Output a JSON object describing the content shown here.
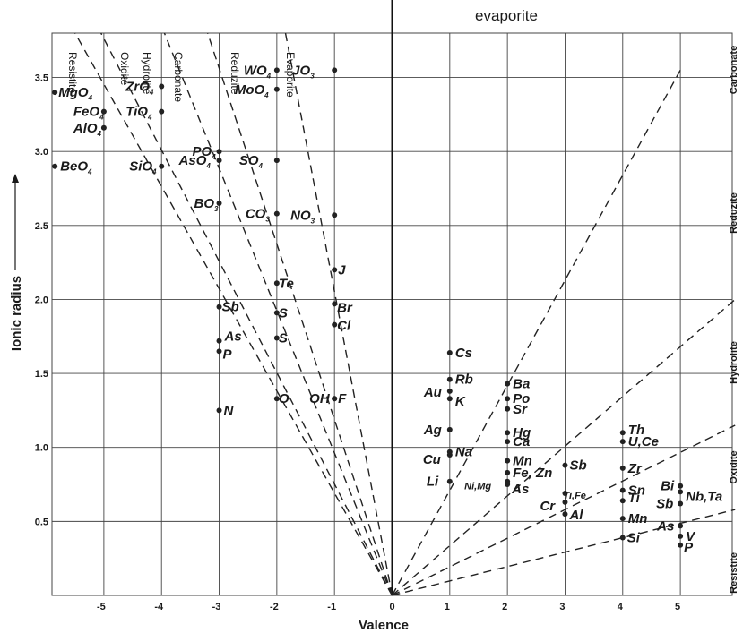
{
  "chart_data": {
    "type": "scatter",
    "title": "evaporite",
    "xlabel": "Valence",
    "ylabel": "Ionic radius",
    "xlim": [
      -5.9,
      5.9
    ],
    "ylim": [
      0,
      3.8
    ],
    "grid": true,
    "x_ticks": [
      -5,
      -4,
      -3,
      -2,
      -1,
      0,
      1,
      2,
      3,
      4,
      5
    ],
    "x_tick_labels": [
      "-5",
      "-4",
      "-3",
      "-2",
      "-1",
      "0",
      "1",
      "2",
      "3",
      "4",
      "5"
    ],
    "y_ticks": [
      0.5,
      1.0,
      1.5,
      2.0,
      2.5,
      3.0,
      3.5
    ],
    "y_tick_labels": [
      "0.5",
      "1.0",
      "1.5",
      "2.0",
      "2.5",
      "3.0",
      "3.5"
    ],
    "points": [
      {
        "label": "MgO",
        "sub": "4",
        "x": -5.85,
        "y": 3.4
      },
      {
        "label": "FeO",
        "sub": "4",
        "x": -5.0,
        "y": 3.27
      },
      {
        "label": "AlO",
        "sub": "4",
        "x": -5.0,
        "y": 3.16
      },
      {
        "label": "BeO",
        "sub": "4",
        "x": -5.85,
        "y": 2.9
      },
      {
        "label": "ZrO",
        "sub": "4",
        "x": -4.0,
        "y": 3.44
      },
      {
        "label": "TiO",
        "sub": "4",
        "x": -4.0,
        "y": 3.27
      },
      {
        "label": "SiO",
        "sub": "4",
        "x": -4.0,
        "y": 2.9
      },
      {
        "label": "PO",
        "sub": "4",
        "x": -3.0,
        "y": 3.0
      },
      {
        "label": "AsO",
        "sub": "4",
        "x": -3.0,
        "y": 2.94
      },
      {
        "label": "BO",
        "sub": "3",
        "x": -3.0,
        "y": 2.65
      },
      {
        "label": "WO",
        "sub": "4",
        "x": -2.0,
        "y": 3.55
      },
      {
        "label": "MoO",
        "sub": "4",
        "x": -2.0,
        "y": 3.42
      },
      {
        "label": "SO",
        "sub": "4",
        "x": -2.0,
        "y": 2.94
      },
      {
        "label": "CO",
        "sub": "3",
        "x": -2.0,
        "y": 2.58
      },
      {
        "label": "JO",
        "sub": "3",
        "x": -1.0,
        "y": 3.55
      },
      {
        "label": "NO",
        "sub": "3",
        "x": -1.0,
        "y": 2.57
      },
      {
        "label": "Te",
        "sub": "",
        "x": -2.0,
        "y": 2.11
      },
      {
        "label": "J",
        "sub": "",
        "x": -1.0,
        "y": 2.2
      },
      {
        "label": "Br",
        "sub": "",
        "x": -1.0,
        "y": 1.97
      },
      {
        "label": "Cl",
        "sub": "",
        "x": -1.0,
        "y": 1.83
      },
      {
        "label": "Sb",
        "sub": "",
        "x": -3.0,
        "y": 1.95
      },
      {
        "label": "S",
        "sub": "",
        "x": -2.0,
        "y": 1.91
      },
      {
        "label": "As",
        "sub": "",
        "x": -3.0,
        "y": 1.72
      },
      {
        "label": "S",
        "sub": "",
        "x": -2.0,
        "y": 1.74
      },
      {
        "label": "P",
        "sub": "",
        "x": -3.0,
        "y": 1.65
      },
      {
        "label": "O",
        "sub": "",
        "x": -2.0,
        "y": 1.33
      },
      {
        "label": "OH",
        "sub": "",
        "x": -1.0,
        "y": 1.33
      },
      {
        "label": "F",
        "sub": "",
        "x": -1.0,
        "y": 1.33
      },
      {
        "label": "N",
        "sub": "",
        "x": -3.0,
        "y": 1.25
      },
      {
        "label": "Cs",
        "sub": "",
        "x": 1.0,
        "y": 1.64
      },
      {
        "label": "Rb",
        "sub": "",
        "x": 1.0,
        "y": 1.46
      },
      {
        "label": "Au",
        "sub": "",
        "x": 1.0,
        "y": 1.38
      },
      {
        "label": "K",
        "sub": "",
        "x": 1.0,
        "y": 1.33
      },
      {
        "label": "Ag",
        "sub": "",
        "x": 1.0,
        "y": 1.12
      },
      {
        "label": "Na",
        "sub": "",
        "x": 1.0,
        "y": 0.97
      },
      {
        "label": "Cu",
        "sub": "",
        "x": 1.0,
        "y": 0.95
      },
      {
        "label": "Li",
        "sub": "",
        "x": 1.0,
        "y": 0.77
      },
      {
        "label": "Ba",
        "sub": "",
        "x": 2.0,
        "y": 1.43
      },
      {
        "label": "Po",
        "sub": "",
        "x": 2.0,
        "y": 1.33
      },
      {
        "label": "Sr",
        "sub": "",
        "x": 2.0,
        "y": 1.26
      },
      {
        "label": "Hg",
        "sub": "",
        "x": 2.0,
        "y": 1.1
      },
      {
        "label": "Ca",
        "sub": "",
        "x": 2.0,
        "y": 1.04
      },
      {
        "label": "Mn",
        "sub": "",
        "x": 2.0,
        "y": 0.91
      },
      {
        "label": "Fe, Zn",
        "sub": "",
        "x": 2.0,
        "y": 0.83
      },
      {
        "label": "Ni,Mg",
        "sub": "",
        "x": 2.0,
        "y": 0.77
      },
      {
        "label": "As",
        "sub": "",
        "x": 2.0,
        "y": 0.75
      },
      {
        "label": "Sb",
        "sub": "",
        "x": 3.0,
        "y": 0.88
      },
      {
        "label": "Ti,Fe",
        "sub": "",
        "x": 3.0,
        "y": 0.69
      },
      {
        "label": "Cr",
        "sub": "",
        "x": 3.0,
        "y": 0.63
      },
      {
        "label": "Al",
        "sub": "",
        "x": 3.0,
        "y": 0.55
      },
      {
        "label": "Th",
        "sub": "",
        "x": 4.0,
        "y": 1.1
      },
      {
        "label": "U,Ce",
        "sub": "",
        "x": 4.0,
        "y": 1.04
      },
      {
        "label": "Zr",
        "sub": "",
        "x": 4.0,
        "y": 0.86
      },
      {
        "label": "Sn",
        "sub": "",
        "x": 4.0,
        "y": 0.71
      },
      {
        "label": "Ti",
        "sub": "",
        "x": 4.0,
        "y": 0.64
      },
      {
        "label": "Mn",
        "sub": "",
        "x": 4.0,
        "y": 0.52
      },
      {
        "label": "Si",
        "sub": "",
        "x": 4.0,
        "y": 0.39
      },
      {
        "label": "Bi",
        "sub": "",
        "x": 5.0,
        "y": 0.74
      },
      {
        "label": "Nb,Ta",
        "sub": "",
        "x": 5.0,
        "y": 0.7
      },
      {
        "label": "Sb",
        "sub": "",
        "x": 5.0,
        "y": 0.62
      },
      {
        "label": "As",
        "sub": "",
        "x": 5.0,
        "y": 0.47
      },
      {
        "label": "V",
        "sub": "",
        "x": 5.0,
        "y": 0.4
      },
      {
        "label": "P",
        "sub": "",
        "x": 5.0,
        "y": 0.34
      }
    ],
    "region_labels_left": [
      "Resistite",
      "Oxidite",
      "Hydrolite",
      "Carbonate",
      "Reduzite",
      "Evaporite"
    ],
    "region_labels_right": [
      "Carbonate",
      "Reduzite",
      "Hydrolite",
      "Oxidite",
      "Resistite"
    ],
    "boundary_lines": [
      {
        "from": [
          0,
          0
        ],
        "to": [
          -5.5,
          3.8
        ]
      },
      {
        "from": [
          0,
          0
        ],
        "to": [
          -5.05,
          3.8
        ]
      },
      {
        "from": [
          0,
          0
        ],
        "to": [
          -3.95,
          3.8
        ]
      },
      {
        "from": [
          0,
          0
        ],
        "to": [
          -3.2,
          3.8
        ]
      },
      {
        "from": [
          0,
          0
        ],
        "to": [
          -1.85,
          3.8
        ]
      },
      {
        "from": [
          0,
          0
        ],
        "to": [
          5.0,
          3.55
        ]
      },
      {
        "from": [
          0,
          0
        ],
        "to": [
          5.95,
          2.0
        ]
      },
      {
        "from": [
          0,
          0
        ],
        "to": [
          5.95,
          1.15
        ]
      },
      {
        "from": [
          0,
          0
        ],
        "to": [
          5.95,
          0.58
        ]
      }
    ]
  }
}
